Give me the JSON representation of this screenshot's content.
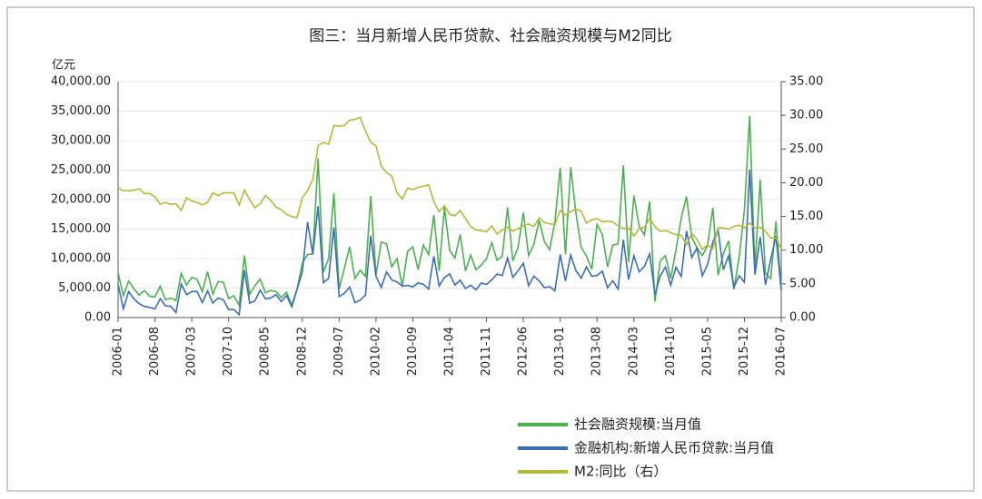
{
  "chart_data": {
    "type": "line",
    "title": "图三：当月新增人民币贷款、社会融资规模与M2同比",
    "y_label": "亿元",
    "categories": [
      "2006-01",
      null,
      null,
      null,
      null,
      null,
      null,
      "2006-08",
      null,
      null,
      null,
      null,
      null,
      null,
      "2007-03",
      null,
      null,
      null,
      null,
      null,
      null,
      "2007-10",
      null,
      null,
      null,
      null,
      null,
      null,
      "2008-05",
      null,
      null,
      null,
      null,
      null,
      null,
      "2008-12",
      null,
      null,
      null,
      null,
      null,
      null,
      "2009-07",
      null,
      null,
      null,
      null,
      null,
      null,
      "2010-02",
      null,
      null,
      null,
      null,
      null,
      null,
      "2010-09",
      null,
      null,
      null,
      null,
      null,
      null,
      "2011-04",
      null,
      null,
      null,
      null,
      null,
      null,
      "2011-11",
      null,
      null,
      null,
      null,
      null,
      null,
      "2012-06",
      null,
      null,
      null,
      null,
      null,
      null,
      "2013-01",
      null,
      null,
      null,
      null,
      null,
      null,
      "2013-08",
      null,
      null,
      null,
      null,
      null,
      null,
      "2014-03",
      null,
      null,
      null,
      null,
      null,
      null,
      "2014-10",
      null,
      null,
      null,
      null,
      null,
      null,
      "2015-05",
      null,
      null,
      null,
      null,
      null,
      null,
      "2015-12",
      null,
      null,
      null,
      null,
      null,
      null,
      "2016-07"
    ],
    "series": [
      {
        "name": "社会融资规模:当月值",
        "color": "#4caf50",
        "values": [
          7600,
          3700,
          6200,
          4900,
          3800,
          4600,
          3600,
          3500,
          5300,
          3000,
          3300,
          2900,
          7500,
          5500,
          6800,
          6500,
          4400,
          7800,
          4000,
          6100,
          6000,
          3200,
          3700,
          2100,
          10500,
          3900,
          5400,
          6500,
          4200,
          4600,
          4400,
          3400,
          4300,
          2100,
          4800,
          9200,
          10700,
          10800,
          27000,
          7700,
          10000,
          21100,
          4900,
          8400,
          12000,
          6600,
          8000,
          7000,
          20600,
          7200,
          12800,
          12500,
          8600,
          10000,
          5300,
          11200,
          12000,
          8100,
          12300,
          10700,
          17400,
          7900,
          18700,
          11400,
          10100,
          14100,
          7900,
          10600,
          8100,
          8900,
          10000,
          12700,
          9700,
          10400,
          18700,
          9600,
          11900,
          17800,
          10500,
          12400,
          16500,
          12900,
          11500,
          16300,
          25400,
          10700,
          25500,
          17600,
          11900,
          10400,
          8200,
          15800,
          14100,
          8600,
          12300,
          12500,
          25800,
          9400,
          20700,
          15500,
          14000,
          19700,
          2700,
          9600,
          10500,
          6600,
          11500,
          16900,
          20500,
          13600,
          11800,
          10500,
          12200,
          18600,
          7200,
          10800,
          13000,
          4800,
          10200,
          18200,
          34200,
          8200,
          23400,
          7500,
          6600,
          16300,
          4900
        ]
      },
      {
        "name": "金融机构:新增人民币贷款:当月值",
        "color": "#3c6eb4",
        "values": [
          5636,
          1478,
          4397,
          3177,
          2353,
          1895,
          1720,
          1467,
          3198,
          2001,
          1917,
          840,
          5670,
          3880,
          4418,
          4435,
          2534,
          4515,
          2456,
          3298,
          3016,
          1361,
          1358,
          485,
          8037,
          2439,
          2834,
          4645,
          3185,
          3316,
          3886,
          2715,
          3745,
          1811,
          4769,
          7718,
          16200,
          10700,
          18900,
          5918,
          6645,
          15300,
          3559,
          4104,
          5167,
          2530,
          2948,
          3798,
          13900,
          7001,
          5107,
          7740,
          6394,
          6034,
          5324,
          5452,
          5185,
          5877,
          5640,
          4807,
          10400,
          5356,
          6794,
          7396,
          5516,
          6339,
          4925,
          5485,
          4700,
          5868,
          5622,
          6405,
          7381,
          7107,
          10100,
          6818,
          7932,
          9198,
          5401,
          7039,
          6232,
          5053,
          5229,
          4543,
          10700,
          6200,
          10600,
          7929,
          6674,
          8605,
          6999,
          7128,
          7870,
          5061,
          6246,
          4825,
          13200,
          6445,
          10500,
          7747,
          8708,
          10800,
          3852,
          7025,
          8572,
          5483,
          8527,
          6973,
          14700,
          10200,
          11800,
          7079,
          9008,
          12800,
          14800,
          8096,
          10500,
          5136,
          7089,
          5978,
          25100,
          7266,
          13700,
          5556,
          9855,
          13800,
          4636
        ]
      },
      {
        "name": "M2:同比（右）",
        "color": "#b5b83a",
        "axis": "y2",
        "values": [
          19.2,
          18.8,
          18.8,
          18.9,
          19.1,
          18.4,
          18.4,
          17.9,
          16.8,
          17.1,
          16.8,
          16.9,
          15.9,
          17.8,
          17.3,
          17.1,
          16.7,
          17.1,
          18.5,
          18.1,
          18.5,
          18.5,
          18.5,
          16.7,
          18.9,
          17.5,
          16.3,
          16.9,
          18.1,
          17.4,
          16.4,
          16.0,
          15.3,
          15.0,
          14.8,
          17.8,
          18.8,
          20.5,
          25.5,
          26.0,
          25.7,
          28.5,
          28.4,
          28.5,
          29.3,
          29.4,
          29.7,
          27.7,
          26.0,
          25.5,
          22.5,
          21.5,
          21.0,
          18.5,
          17.6,
          19.2,
          19.0,
          19.3,
          19.5,
          19.7,
          17.2,
          15.7,
          16.6,
          15.3,
          15.1,
          15.9,
          14.7,
          13.5,
          13.0,
          12.9,
          12.7,
          13.6,
          12.4,
          13.0,
          13.4,
          12.8,
          13.2,
          13.6,
          13.9,
          13.5,
          14.8,
          14.1,
          13.9,
          13.8,
          15.9,
          15.2,
          15.7,
          16.1,
          15.8,
          14.0,
          14.5,
          14.7,
          14.2,
          14.3,
          14.2,
          13.6,
          13.2,
          13.3,
          12.1,
          13.2,
          13.4,
          14.7,
          13.5,
          12.8,
          12.9,
          12.6,
          12.3,
          12.2,
          10.8,
          12.5,
          11.6,
          10.1,
          10.8,
          10.2,
          13.3,
          13.3,
          13.1,
          13.5,
          13.7,
          13.3,
          14.0,
          13.3,
          13.4,
          12.8,
          11.8,
          11.8,
          10.2
        ]
      }
    ],
    "ylim": [
      0,
      40000
    ],
    "yticks": [
      {
        "value": 0,
        "label": "0.00"
      },
      {
        "value": 5000,
        "label": "5,000.00"
      },
      {
        "value": 10000,
        "label": "10,000.00"
      },
      {
        "value": 15000,
        "label": "15,000.00"
      },
      {
        "value": 20000,
        "label": "20,000.00"
      },
      {
        "value": 25000,
        "label": "25,000.00"
      },
      {
        "value": 30000,
        "label": "30,000.00"
      },
      {
        "value": 35000,
        "label": "35,000.00"
      },
      {
        "value": 40000,
        "label": "40,000.00"
      }
    ],
    "y2lim": [
      0,
      35
    ],
    "y2ticks": [
      {
        "value": 0,
        "label": "0.00"
      },
      {
        "value": 5,
        "label": "5.00"
      },
      {
        "value": 10,
        "label": "10.00"
      },
      {
        "value": 15,
        "label": "15.00"
      },
      {
        "value": 20,
        "label": "20.00"
      },
      {
        "value": 25,
        "label": "25.00"
      },
      {
        "value": 30,
        "label": "30.00"
      },
      {
        "value": 35,
        "label": "35.00"
      }
    ],
    "grid": true,
    "legend": "bottom"
  }
}
